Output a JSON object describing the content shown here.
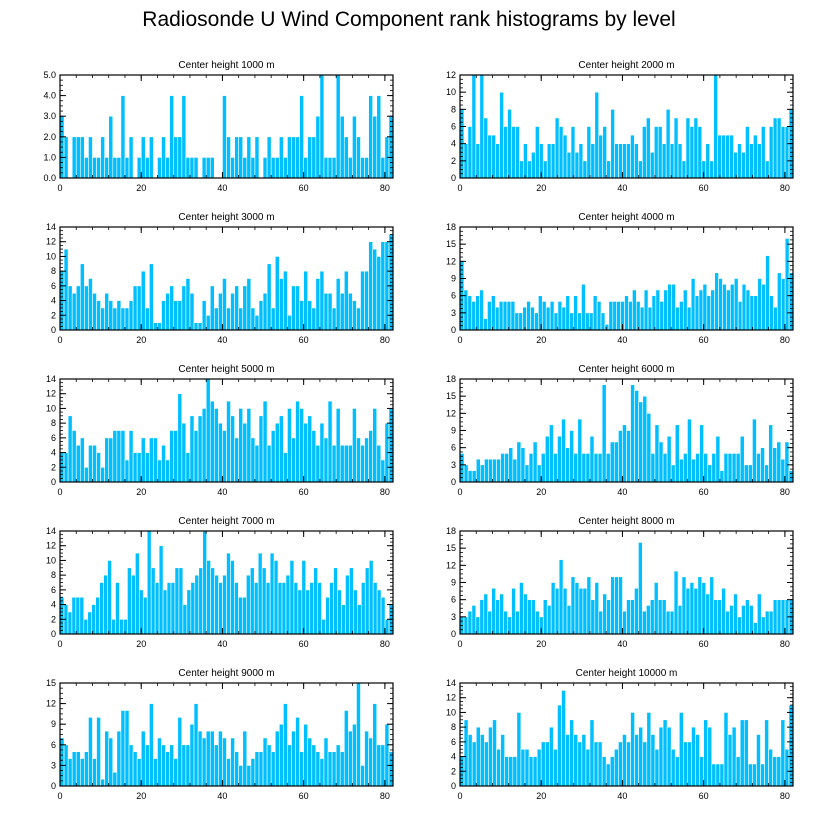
{
  "title": "Radiosonde U Wind Component rank histograms by level",
  "colors": {
    "bar": "#00BFFF",
    "bar_edge": "#ffffff",
    "axis": "#000000"
  },
  "chart_data": [
    {
      "type": "bar",
      "title": "Center height 1000 m",
      "xlim": [
        0,
        82
      ],
      "ylim": [
        0,
        5
      ],
      "xticks": [
        0,
        20,
        40,
        60,
        80
      ],
      "yticks": [
        0,
        1,
        2,
        3,
        4,
        5
      ],
      "ytick_labels": [
        "0.0",
        "1.0",
        "2.0",
        "3.0",
        "4.0",
        "5.0"
      ],
      "values": [
        3,
        2,
        0,
        2,
        2,
        2,
        1,
        2,
        1,
        1,
        2,
        1,
        3,
        1,
        1,
        4,
        1,
        2,
        0,
        1,
        2,
        1,
        2,
        0,
        1,
        2,
        1,
        4,
        2,
        2,
        4,
        1,
        1,
        1,
        0,
        1,
        1,
        1,
        0,
        0,
        4,
        2,
        1,
        2,
        2,
        1,
        2,
        1,
        2,
        0,
        1,
        2,
        1,
        1,
        2,
        1,
        2,
        2,
        2,
        4,
        1,
        2,
        2,
        3,
        5,
        1,
        1,
        1,
        5,
        3,
        2,
        1,
        3,
        2,
        1,
        1,
        4,
        3,
        4,
        1,
        2,
        3
      ]
    },
    {
      "type": "bar",
      "title": "Center height 2000 m",
      "xlim": [
        0,
        82
      ],
      "ylim": [
        0,
        12
      ],
      "xticks": [
        0,
        20,
        40,
        60,
        80
      ],
      "yticks": [
        0,
        2,
        4,
        6,
        8,
        10,
        12
      ],
      "ytick_labels": [
        "0",
        "2",
        "4",
        "6",
        "8",
        "10",
        "12"
      ],
      "values": [
        8,
        4,
        6,
        12,
        4,
        12,
        7,
        5,
        5,
        4,
        10,
        6,
        8,
        6,
        6,
        2,
        4,
        2,
        3,
        6,
        4,
        2,
        4,
        4,
        7,
        6,
        5,
        3,
        6,
        3,
        4,
        2,
        6,
        4,
        10,
        5,
        6,
        2,
        8,
        4,
        4,
        4,
        4,
        5,
        4,
        2,
        6,
        7,
        3,
        6,
        6,
        4,
        8,
        4,
        7,
        4,
        2,
        7,
        6,
        7,
        6,
        2,
        4,
        2,
        12,
        5,
        5,
        5,
        5,
        3,
        4,
        3,
        6,
        4,
        5,
        4,
        6,
        2,
        6,
        7,
        7,
        6,
        6,
        8
      ]
    },
    {
      "type": "bar",
      "title": "Center height 3000 m",
      "xlim": [
        0,
        82
      ],
      "ylim": [
        0,
        14
      ],
      "xticks": [
        0,
        20,
        40,
        60,
        80
      ],
      "yticks": [
        0,
        2,
        4,
        6,
        8,
        10,
        12,
        14
      ],
      "ytick_labels": [
        "0",
        "2",
        "4",
        "6",
        "8",
        "10",
        "12",
        "14"
      ],
      "values": [
        8,
        11,
        6,
        5,
        6,
        9,
        6,
        7,
        5,
        4,
        3,
        5,
        4,
        3,
        4,
        3,
        3,
        4,
        6,
        6,
        8,
        3,
        9,
        1,
        1,
        4,
        5,
        6,
        4,
        4,
        6,
        7,
        5,
        1,
        1,
        4,
        2,
        6,
        3,
        5,
        7,
        3,
        5,
        6,
        3,
        6,
        7,
        3,
        2,
        4,
        5,
        9,
        3,
        10,
        7,
        8,
        2,
        6,
        6,
        4,
        8,
        4,
        3,
        7,
        8,
        5,
        5,
        3,
        7,
        5,
        8,
        5,
        4,
        3,
        8,
        8,
        12,
        11,
        10,
        12,
        12,
        13
      ]
    },
    {
      "type": "bar",
      "title": "Center height 4000 m",
      "xlim": [
        0,
        82
      ],
      "ylim": [
        0,
        18
      ],
      "xticks": [
        0,
        20,
        40,
        60,
        80
      ],
      "yticks": [
        0,
        3,
        6,
        9,
        12,
        15,
        18
      ],
      "ytick_labels": [
        "0",
        "3",
        "6",
        "9",
        "12",
        "15",
        "18"
      ],
      "values": [
        12,
        7,
        6,
        5,
        6,
        7,
        2,
        5,
        6,
        4,
        5,
        5,
        5,
        5,
        3,
        3,
        4,
        5,
        4,
        3,
        6,
        5,
        4,
        5,
        3,
        5,
        4,
        6,
        3,
        6,
        3,
        8,
        3,
        3,
        6,
        5,
        3,
        1,
        5,
        5,
        5,
        5,
        6,
        5,
        7,
        5,
        4,
        7,
        4,
        6,
        7,
        5,
        7,
        8,
        8,
        4,
        5,
        7,
        4,
        9,
        6,
        7,
        8,
        6,
        7,
        10,
        9,
        8,
        7,
        8,
        9,
        5,
        8,
        7,
        6,
        6,
        9,
        8,
        13,
        6,
        4,
        10,
        9,
        16,
        10
      ]
    },
    {
      "type": "bar",
      "title": "Center height 5000 m",
      "xlim": [
        0,
        82
      ],
      "ylim": [
        0,
        14
      ],
      "xticks": [
        0,
        20,
        40,
        60,
        80
      ],
      "yticks": [
        0,
        2,
        4,
        6,
        8,
        10,
        12,
        14
      ],
      "ytick_labels": [
        "0",
        "2",
        "4",
        "6",
        "8",
        "10",
        "12",
        "14"
      ],
      "values": [
        4,
        4,
        9,
        7,
        5,
        6,
        2,
        5,
        5,
        4,
        2,
        6,
        6,
        7,
        7,
        7,
        3,
        7,
        4,
        4,
        6,
        4,
        6,
        6,
        3,
        5,
        3,
        7,
        7,
        12,
        8,
        4,
        9,
        7,
        9,
        10,
        14,
        11,
        10,
        8,
        7,
        11,
        9,
        6,
        10,
        8,
        10,
        6,
        5,
        9,
        11,
        5,
        7,
        8,
        9,
        4,
        10,
        6,
        11,
        10,
        8,
        9,
        7,
        5,
        8,
        6,
        11,
        5,
        10,
        5,
        5,
        5,
        10,
        6,
        5,
        6,
        7,
        10,
        5,
        3,
        8,
        10
      ]
    },
    {
      "type": "bar",
      "title": "Center height 6000 m",
      "xlim": [
        0,
        82
      ],
      "ylim": [
        0,
        18
      ],
      "xticks": [
        0,
        20,
        40,
        60,
        80
      ],
      "yticks": [
        0,
        3,
        6,
        9,
        12,
        15,
        18
      ],
      "ytick_labels": [
        "0",
        "3",
        "6",
        "9",
        "12",
        "15",
        "18"
      ],
      "values": [
        5,
        3,
        2,
        2,
        4,
        3,
        4,
        4,
        4,
        4,
        5,
        5,
        6,
        4,
        7,
        6,
        3,
        5,
        7,
        3,
        5,
        8,
        10,
        5,
        8,
        11,
        6,
        9,
        5,
        11,
        5,
        5,
        8,
        5,
        5,
        17,
        5,
        7,
        7,
        9,
        10,
        9,
        17,
        16,
        14,
        15,
        12,
        5,
        10,
        7,
        5,
        8,
        3,
        10,
        4,
        5,
        11,
        4,
        5,
        10,
        5,
        3,
        5,
        8,
        2,
        5,
        5,
        5,
        5,
        8,
        3,
        3,
        11,
        5,
        6,
        3,
        10,
        6,
        7,
        4,
        7,
        2
      ]
    },
    {
      "type": "bar",
      "title": "Center height 7000 m",
      "xlim": [
        0,
        82
      ],
      "ylim": [
        0,
        14
      ],
      "xticks": [
        0,
        20,
        40,
        60,
        80
      ],
      "yticks": [
        0,
        2,
        4,
        6,
        8,
        10,
        12,
        14
      ],
      "ytick_labels": [
        "0",
        "2",
        "4",
        "6",
        "8",
        "10",
        "12",
        "14"
      ],
      "values": [
        5,
        4,
        3,
        5,
        5,
        5,
        2,
        3,
        4,
        5,
        7,
        8,
        10,
        2,
        7,
        2,
        2,
        9,
        8,
        11,
        6,
        5,
        14,
        9,
        7,
        12,
        6,
        7,
        7,
        9,
        9,
        4,
        6,
        7,
        8,
        9,
        14,
        10,
        9,
        8,
        7,
        8,
        11,
        10,
        7,
        5,
        5,
        8,
        9,
        7,
        11,
        9,
        7,
        11,
        10,
        7,
        7,
        8,
        10,
        7,
        6,
        10,
        6,
        7,
        9,
        7,
        2,
        5,
        7,
        9,
        6,
        4,
        8,
        9,
        6,
        4,
        7,
        9,
        10,
        7,
        6,
        5,
        2,
        4
      ]
    },
    {
      "type": "bar",
      "title": "Center height 8000 m",
      "xlim": [
        0,
        82
      ],
      "ylim": [
        0,
        18
      ],
      "xticks": [
        0,
        20,
        40,
        60,
        80
      ],
      "yticks": [
        0,
        3,
        6,
        9,
        12,
        15,
        18
      ],
      "ytick_labels": [
        "0",
        "3",
        "6",
        "9",
        "12",
        "15",
        "18"
      ],
      "values": [
        3,
        3,
        4,
        5,
        3,
        6,
        7,
        4,
        8,
        6,
        7,
        4,
        3,
        8,
        4,
        9,
        7,
        6,
        6,
        4,
        3,
        6,
        5,
        9,
        8,
        13,
        8,
        5,
        10,
        9,
        8,
        8,
        10,
        6,
        9,
        4,
        7,
        6,
        10,
        10,
        10,
        4,
        6,
        6,
        8,
        16,
        4,
        5,
        6,
        9,
        6,
        6,
        4,
        4,
        11,
        5,
        10,
        8,
        9,
        8,
        10,
        9,
        7,
        10,
        6,
        6,
        8,
        4,
        5,
        7,
        3,
        5,
        6,
        5,
        2,
        7,
        3,
        4,
        4,
        6,
        6,
        6,
        6,
        6
      ]
    },
    {
      "type": "bar",
      "title": "Center height 9000 m",
      "xlim": [
        0,
        82
      ],
      "ylim": [
        0,
        15
      ],
      "xticks": [
        0,
        20,
        40,
        60,
        80
      ],
      "yticks": [
        0,
        3,
        6,
        9,
        12,
        15
      ],
      "ytick_labels": [
        "0",
        "3",
        "6",
        "9",
        "12",
        "15"
      ],
      "values": [
        7,
        6,
        4,
        5,
        5,
        4,
        5,
        10,
        4,
        10,
        1,
        8,
        7,
        2,
        8,
        11,
        11,
        6,
        5,
        4,
        8,
        6,
        12,
        4,
        7,
        6,
        5,
        6,
        4,
        10,
        6,
        6,
        9,
        12,
        8,
        7,
        8,
        8,
        6,
        8,
        7,
        4,
        7,
        5,
        3,
        8,
        3,
        4,
        5,
        5,
        7,
        6,
        5,
        8,
        9,
        12,
        6,
        8,
        10,
        5,
        9,
        7,
        6,
        5,
        4,
        7,
        5,
        5,
        6,
        5,
        11,
        8,
        9,
        15,
        3,
        8,
        7,
        12,
        6,
        6,
        9,
        5
      ]
    },
    {
      "type": "bar",
      "title": "Center height 10000 m",
      "xlim": [
        0,
        82
      ],
      "ylim": [
        0,
        14
      ],
      "xticks": [
        0,
        20,
        40,
        60,
        80
      ],
      "yticks": [
        0,
        2,
        4,
        6,
        8,
        10,
        12,
        14
      ],
      "ytick_labels": [
        "0",
        "2",
        "4",
        "6",
        "8",
        "10",
        "12",
        "14"
      ],
      "values": [
        4,
        9,
        7,
        6,
        8,
        7,
        6,
        8,
        9,
        5,
        7,
        4,
        4,
        4,
        10,
        5,
        5,
        4,
        4,
        5,
        6,
        6,
        8,
        5,
        11,
        13,
        7,
        9,
        7,
        6,
        7,
        5,
        9,
        6,
        6,
        4,
        3,
        4,
        5,
        6,
        7,
        6,
        10,
        7,
        8,
        6,
        10,
        7,
        5,
        8,
        9,
        8,
        5,
        4,
        10,
        6,
        6,
        8,
        7,
        4,
        9,
        8,
        3,
        3,
        3,
        10,
        7,
        8,
        4,
        9,
        9,
        3,
        3,
        7,
        3,
        9,
        5,
        4,
        4,
        9,
        5,
        11
      ]
    }
  ]
}
